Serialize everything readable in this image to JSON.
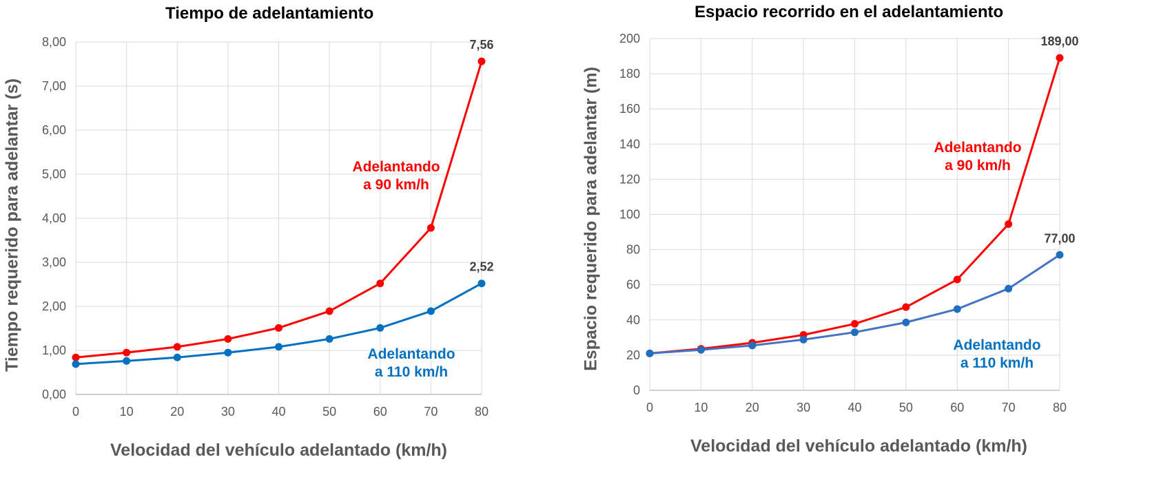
{
  "chart_data": [
    {
      "type": "line",
      "title": "Tiempo de adelantamiento",
      "xlabel": "Velocidad del vehículo adelantado (km/h)",
      "ylabel": "Tiempo requerido para adelantar (s)",
      "x": [
        0,
        10,
        20,
        30,
        40,
        50,
        60,
        70,
        80
      ],
      "xlim": [
        0,
        80
      ],
      "ylim": [
        0,
        8
      ],
      "yticks": [
        "0,00",
        "1,00",
        "2,00",
        "3,00",
        "4,00",
        "5,00",
        "6,00",
        "7,00",
        "8,00"
      ],
      "xticks": [
        "0",
        "10",
        "20",
        "30",
        "40",
        "50",
        "60",
        "70",
        "80"
      ],
      "grid": true,
      "series": [
        {
          "name": "Adelantando a 90 km/h",
          "label_lines": [
            "Adelantando",
            "a 90 km/h"
          ],
          "color": "#ff0000",
          "values": [
            0.84,
            0.95,
            1.08,
            1.26,
            1.51,
            1.89,
            2.52,
            3.78,
            7.56
          ],
          "end_label": "7,56"
        },
        {
          "name": "Adelantando a 110 km/h",
          "label_lines": [
            "Adelantando",
            "a 110 km/h"
          ],
          "color": "#0070c0",
          "values": [
            0.69,
            0.76,
            0.84,
            0.95,
            1.08,
            1.26,
            1.51,
            1.89,
            2.52
          ],
          "end_label": "2,52"
        }
      ]
    },
    {
      "type": "line",
      "title": "Espacio recorrido en el adelantamiento",
      "xlabel": "Velocidad del vehículo adelantado (km/h)",
      "ylabel": "Espacio requerido para adelantar (m)",
      "x": [
        0,
        10,
        20,
        30,
        40,
        50,
        60,
        70,
        80
      ],
      "xlim": [
        0,
        80
      ],
      "ylim": [
        0,
        200
      ],
      "yticks": [
        "0",
        "20",
        "40",
        "60",
        "80",
        "100",
        "120",
        "140",
        "160",
        "180",
        "200"
      ],
      "xticks": [
        "0",
        "10",
        "20",
        "30",
        "40",
        "50",
        "60",
        "70",
        "80"
      ],
      "grid": true,
      "series": [
        {
          "name": "Adelantando a 90 km/h",
          "label_lines": [
            "Adelantando",
            "a 90 km/h"
          ],
          "color": "#ff0000",
          "values": [
            21,
            23.6,
            27,
            31.5,
            37.8,
            47.3,
            63,
            94.5,
            189
          ],
          "end_label": "189,00"
        },
        {
          "name": "Adelantando a 110 km/h",
          "label_lines": [
            "Adelantando",
            "a 110 km/h"
          ],
          "color": "#4472c4",
          "marker_color": "#1f6fc0",
          "label_color": "#0070c0",
          "values": [
            21,
            23,
            25.5,
            28.8,
            33,
            38.6,
            46.2,
            57.8,
            77
          ],
          "end_label": "77,00"
        }
      ]
    }
  ]
}
